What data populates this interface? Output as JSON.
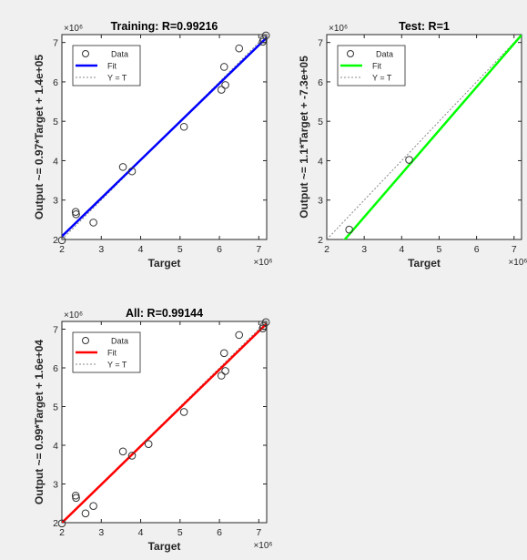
{
  "chart_data": [
    {
      "type": "scatter",
      "title": "Training: R=0.99216",
      "xlabel": "Target",
      "ylabel": "Output ~= 0.97*Target + 1.4e+05",
      "xlim": [
        2,
        7.2
      ],
      "ylim": [
        2,
        7.2
      ],
      "scale_label": "×10⁶",
      "xticks": [
        2,
        3,
        4,
        5,
        6,
        7
      ],
      "yticks": [
        2,
        3,
        4,
        5,
        6,
        7
      ],
      "legend": {
        "position": "top-left",
        "entries": [
          "Data",
          "Fit",
          "Y = T"
        ]
      },
      "fit_color": "#0000ff",
      "fit": {
        "slope": 0.97,
        "intercept": 0.14
      },
      "data_points": [
        {
          "x": 2.0,
          "y": 1.98
        },
        {
          "x": 2.35,
          "y": 2.7
        },
        {
          "x": 2.36,
          "y": 2.64
        },
        {
          "x": 2.8,
          "y": 2.43
        },
        {
          "x": 3.55,
          "y": 3.84
        },
        {
          "x": 3.78,
          "y": 3.73
        },
        {
          "x": 5.1,
          "y": 4.86
        },
        {
          "x": 6.05,
          "y": 5.8
        },
        {
          "x": 6.12,
          "y": 6.38
        },
        {
          "x": 6.15,
          "y": 5.92
        },
        {
          "x": 6.5,
          "y": 6.85
        },
        {
          "x": 7.1,
          "y": 7.02
        },
        {
          "x": 7.12,
          "y": 7.08
        },
        {
          "x": 7.18,
          "y": 7.18
        }
      ]
    },
    {
      "type": "scatter",
      "title": "Test: R=1",
      "xlabel": "Target",
      "ylabel": "Output ~= 1.1*Target + -7.3e+05",
      "xlim": [
        2,
        7.2
      ],
      "ylim": [
        2,
        7.2
      ],
      "scale_label": "×10⁶",
      "xticks": [
        2,
        3,
        4,
        5,
        6,
        7
      ],
      "yticks": [
        2,
        3,
        4,
        5,
        6,
        7
      ],
      "legend": {
        "position": "top-left",
        "entries": [
          "Data",
          "Fit",
          "Y = T"
        ]
      },
      "fit_color": "#00ff00",
      "fit": {
        "slope": 1.1,
        "intercept": -0.73
      },
      "data_points": [
        {
          "x": 2.6,
          "y": 2.25
        },
        {
          "x": 4.2,
          "y": 4.02
        }
      ]
    },
    {
      "type": "scatter",
      "title": "All: R=0.99144",
      "xlabel": "Target",
      "ylabel": "Output ~= 0.99*Target + 1.6e+04",
      "xlim": [
        2,
        7.2
      ],
      "ylim": [
        2,
        7.2
      ],
      "scale_label": "×10⁶",
      "xticks": [
        2,
        3,
        4,
        5,
        6,
        7
      ],
      "yticks": [
        2,
        3,
        4,
        5,
        6,
        7
      ],
      "legend": {
        "position": "top-left",
        "entries": [
          "Data",
          "Fit",
          "Y = T"
        ]
      },
      "fit_color": "#ff0000",
      "fit": {
        "slope": 0.99,
        "intercept": 0.016
      },
      "data_points": [
        {
          "x": 2.0,
          "y": 1.98
        },
        {
          "x": 2.35,
          "y": 2.7
        },
        {
          "x": 2.36,
          "y": 2.64
        },
        {
          "x": 2.6,
          "y": 2.24
        },
        {
          "x": 2.8,
          "y": 2.43
        },
        {
          "x": 3.55,
          "y": 3.84
        },
        {
          "x": 3.78,
          "y": 3.73
        },
        {
          "x": 4.2,
          "y": 4.03
        },
        {
          "x": 5.1,
          "y": 4.86
        },
        {
          "x": 6.05,
          "y": 5.8
        },
        {
          "x": 6.12,
          "y": 6.38
        },
        {
          "x": 6.15,
          "y": 5.92
        },
        {
          "x": 6.5,
          "y": 6.85
        },
        {
          "x": 7.1,
          "y": 7.02
        },
        {
          "x": 7.12,
          "y": 7.08
        },
        {
          "x": 7.18,
          "y": 7.18
        }
      ]
    }
  ]
}
